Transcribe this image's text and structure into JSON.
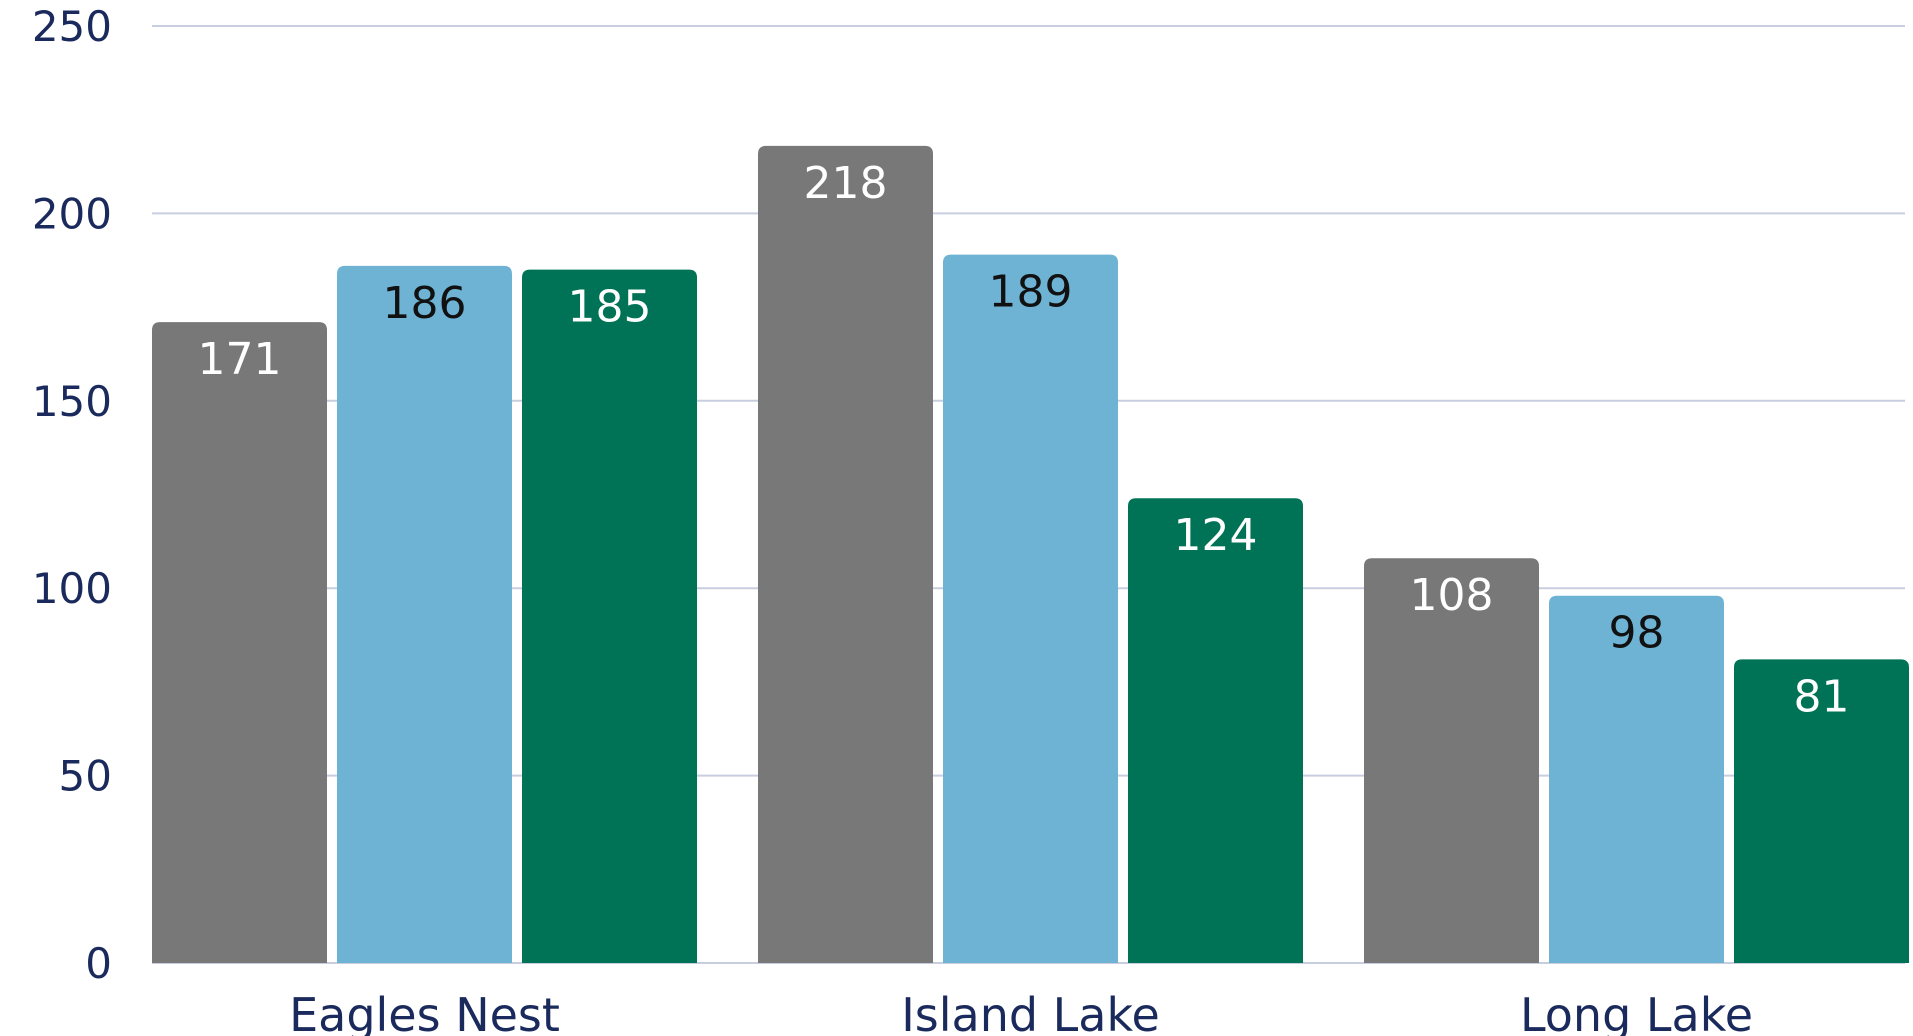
{
  "chart_data": {
    "type": "bar",
    "title": "",
    "xlabel": "",
    "ylabel": "",
    "categories": [
      "Eagles Nest",
      "Island Lake",
      "Long Lake"
    ],
    "series": [
      {
        "color": "#787878",
        "label_color": "#ffffff",
        "values": [
          171,
          218,
          108
        ]
      },
      {
        "color": "#6eb3d4",
        "label_color": "#111111",
        "values": [
          186,
          189,
          98
        ]
      },
      {
        "color": "#007356",
        "label_color": "#ffffff",
        "values": [
          185,
          124,
          81
        ]
      }
    ],
    "ylim": [
      0,
      250
    ],
    "yticks": [
      0,
      50,
      100,
      150,
      200,
      250
    ],
    "grid": true,
    "legend": "none"
  }
}
